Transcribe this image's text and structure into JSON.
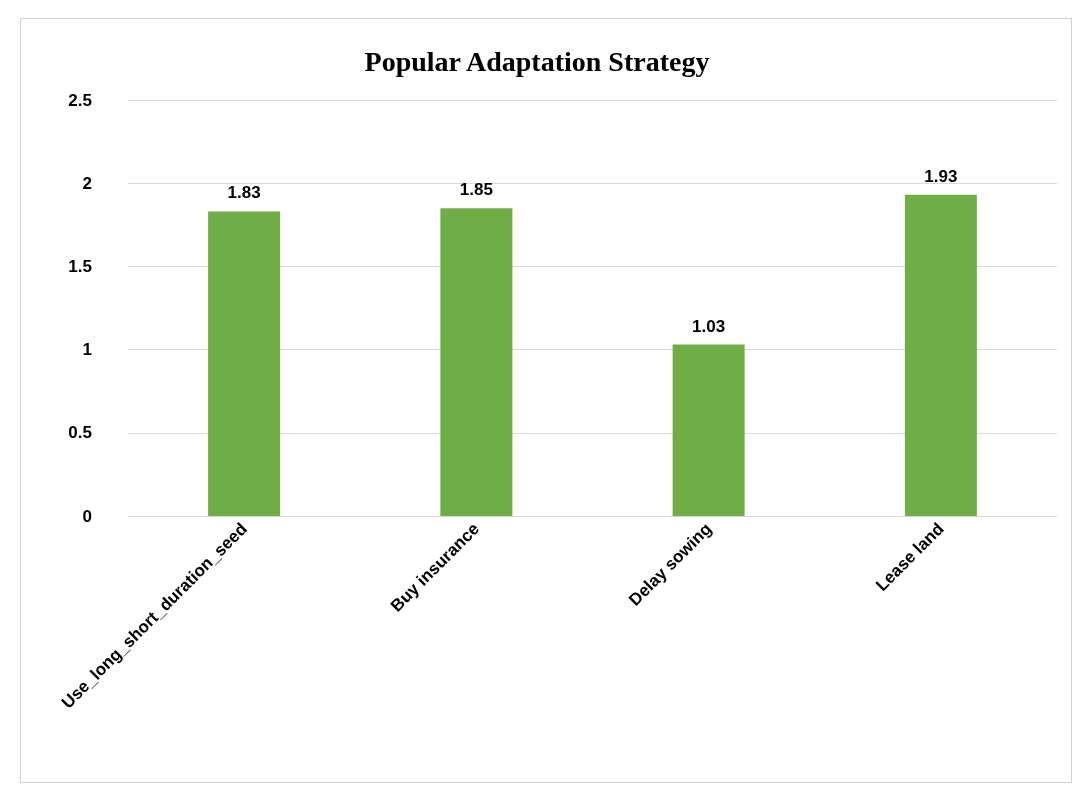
{
  "chart_data": {
    "type": "bar",
    "title": "Popular Adaptation Strategy",
    "categories": [
      "Use_long_short_duration_seed",
      "Buy insurance",
      "Delay sowing",
      "Lease land"
    ],
    "values": [
      1.83,
      1.85,
      1.03,
      1.93
    ],
    "color": "#70ad47",
    "ylim": [
      0,
      2.5
    ],
    "yticks": [
      0,
      0.5,
      1,
      1.5,
      2,
      2.5
    ],
    "grid": "y",
    "data_labels": true
  }
}
